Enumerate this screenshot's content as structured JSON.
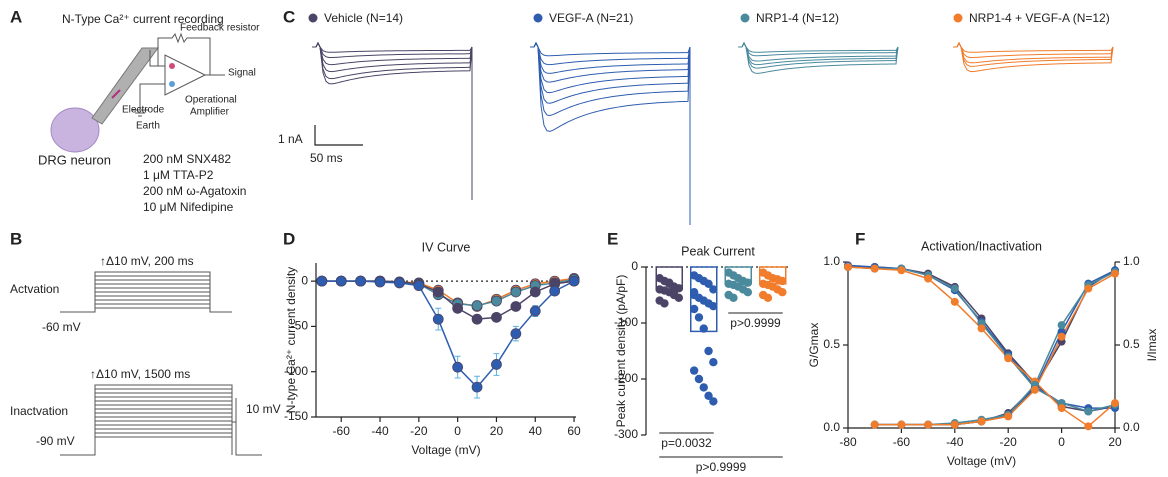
{
  "panel_labels": [
    "A",
    "B",
    "C",
    "D",
    "E",
    "F"
  ],
  "panel_a": {
    "title": "N-Type Ca²⁺ current recording",
    "feedback": "Feedback resistor",
    "signal": "Signal",
    "amplifier": [
      "Operational",
      "Amplifier"
    ],
    "electrode": "Electrode",
    "earth": "Earth",
    "cell": "DRG neuron",
    "blockers": [
      "200 nM SNX482",
      "1 μM TTA-P2",
      "200 nM ω-Agatoxin",
      "10 μM Nifedipine"
    ]
  },
  "panel_b": {
    "activation": {
      "step": "↑Δ10 mV, 200 ms",
      "label": "Actvation",
      "hold": "-60 mV"
    },
    "inactivation": {
      "step": "↑Δ10 mV, 1500 ms",
      "label": "Inactvation",
      "hold": "-90 mV",
      "test": "10 mV"
    }
  },
  "chart_data": [
    {
      "type": "traces",
      "scale_y": "1 nA",
      "scale_x": "50 ms",
      "series": [
        {
          "name": "Vehicle (N=14)",
          "color": "#4b4466",
          "values": [
            0.3,
            0.6,
            1.0,
            1.4,
            1.8,
            2.1
          ]
        },
        {
          "name": "VEGF-A (N=21)",
          "color": "#2e5db0",
          "values": [
            0.5,
            1.0,
            1.5,
            2.0,
            2.6,
            3.2,
            3.9,
            4.8
          ]
        },
        {
          "name": "NRP1-4 (N=12)",
          "color": "#4a8a9c",
          "values": [
            0.3,
            0.5,
            0.8,
            1.0,
            1.2,
            1.5
          ]
        },
        {
          "name": "NRP1-4  + VEGF-A (N=12)",
          "color": "#f07c2c",
          "values": [
            0.3,
            0.6,
            0.9,
            1.1,
            1.4
          ]
        }
      ]
    },
    {
      "type": "line",
      "title": "IV Curve",
      "xlabel": "Voltage (mV)",
      "ylabel": "N-type Ca²⁺ current density",
      "x": [
        -70,
        -60,
        -50,
        -40,
        -30,
        -20,
        -10,
        0,
        10,
        20,
        30,
        40,
        50,
        60
      ],
      "xlim": [
        -73,
        61
      ],
      "xticks": [
        -60,
        -40,
        -20,
        0,
        20,
        40,
        60
      ],
      "ylim": [
        -150,
        20
      ],
      "yticks": [
        0,
        -50,
        -100,
        -150
      ],
      "zero_line": true,
      "series": [
        {
          "color": "#f07c2c",
          "values": [
            0,
            0,
            0,
            0,
            -1,
            -2,
            -10,
            -24,
            -28,
            -20,
            -10,
            -3,
            0,
            3
          ]
        },
        {
          "color": "#4a8a9c",
          "values": [
            0,
            0,
            0,
            0,
            -1,
            -3,
            -15,
            -25,
            -27,
            -22,
            -12,
            -5,
            -2,
            2
          ]
        },
        {
          "color": "#4b4466",
          "values": [
            0,
            0,
            0,
            0,
            -1,
            -3,
            -12,
            -30,
            -42,
            -40,
            -28,
            -12,
            -3,
            0
          ]
        },
        {
          "color": "#2e5db0",
          "values": [
            0,
            0,
            0,
            -1,
            -2,
            -5,
            -42,
            -95,
            -117,
            -92,
            -58,
            -33,
            -11,
            0
          ],
          "errors": [
            0,
            0,
            0,
            0,
            1,
            3,
            12,
            12,
            12,
            12,
            8,
            6,
            4,
            3
          ]
        }
      ]
    },
    {
      "type": "dotbar",
      "title": "Peak Current",
      "ylabel": "Peak current density (pA/pF)",
      "ylim": [
        -300,
        0
      ],
      "yticks": [
        0,
        -100,
        -200,
        -300
      ],
      "zero_line": true,
      "categories": [
        null,
        null,
        null,
        null
      ],
      "colors": [
        "#4b4466",
        "#2e5db0",
        "#4a8a9c",
        "#f07c2c"
      ],
      "values": [
        -40,
        -115,
        -30,
        -30
      ],
      "points": [
        [
          -20,
          -25,
          -30,
          -35,
          -38,
          -40,
          -42,
          -45,
          -50,
          -55,
          -60,
          -65,
          -28,
          -48
        ],
        [
          -15,
          -20,
          -25,
          -30,
          -40,
          -45,
          -55,
          -60,
          -65,
          -70,
          -75,
          -90,
          -110,
          -150,
          -170,
          -185,
          -200,
          -215,
          -230,
          -240,
          -50
        ],
        [
          -10,
          -15,
          -20,
          -25,
          -28,
          -30,
          -32,
          -35,
          -40,
          -45,
          -50,
          -55
        ],
        [
          -10,
          -15,
          -20,
          -22,
          -25,
          -30,
          -32,
          -35,
          -40,
          -45,
          -50,
          -55
        ]
      ],
      "annotations": [
        "p>0.9999",
        "p=0.0032",
        "p>0.9999"
      ]
    },
    {
      "type": "line",
      "title": "Activation/Inactivation",
      "xlabel": "Voltage (mV)",
      "ylabel": "G/Gmax",
      "y2label": "I/Imax",
      "x": [
        -80,
        -70,
        -60,
        -50,
        -40,
        -30,
        -20,
        -10,
        0,
        10,
        20
      ],
      "xlim": [
        -80,
        20
      ],
      "xticks": [
        -80,
        -60,
        -40,
        -20,
        0,
        20
      ],
      "ylim": [
        0,
        1
      ],
      "yticks": [
        {
          "value": 0,
          "label": "0.0"
        },
        {
          "value": 0.5,
          "label": "0.5"
        },
        {
          "value": 1,
          "label": "1.0"
        }
      ],
      "y2lim": [
        0,
        1
      ],
      "y2ticks": [
        {
          "value": 0,
          "label": "0.0"
        },
        {
          "value": 0.5,
          "label": "0.5"
        },
        {
          "value": 1,
          "label": "1.0"
        }
      ],
      "series": [
        {
          "color": "#4b4466",
          "axis": "y2",
          "values": [
            0.97,
            0.97,
            0.96,
            0.93,
            0.85,
            0.66,
            0.45,
            0.27,
            0.13,
            0.1,
            0.13
          ]
        },
        {
          "color": "#2e5db0",
          "axis": "y2",
          "values": [
            0.98,
            0.97,
            0.96,
            0.92,
            0.83,
            0.64,
            0.44,
            0.25,
            0.15,
            0.12,
            0.12
          ]
        },
        {
          "color": "#4a8a9c",
          "axis": "y2",
          "values": [
            0.97,
            0.96,
            0.96,
            0.92,
            0.84,
            0.63,
            0.43,
            0.24,
            0.15,
            0.1,
            0.14
          ]
        },
        {
          "color": "#f07c2c",
          "axis": "y2",
          "values": [
            0.97,
            0.96,
            0.95,
            0.9,
            0.76,
            0.6,
            0.42,
            0.28,
            0.12,
            0.01,
            0.15
          ]
        },
        {
          "color": "#4b4466",
          "values": [
            null,
            0.02,
            0.02,
            0.02,
            0.02,
            0.04,
            0.09,
            0.25,
            0.52,
            0.85,
            0.95
          ]
        },
        {
          "color": "#2e5db0",
          "values": [
            null,
            0.02,
            0.02,
            0.02,
            0.02,
            0.04,
            0.08,
            0.24,
            0.58,
            0.87,
            0.95
          ]
        },
        {
          "color": "#4a8a9c",
          "values": [
            null,
            0.02,
            0.02,
            0.02,
            0.03,
            0.05,
            0.08,
            0.26,
            0.62,
            0.86,
            0.94
          ]
        },
        {
          "color": "#f07c2c",
          "values": [
            null,
            0.02,
            0.02,
            0.02,
            0.02,
            0.04,
            0.07,
            0.23,
            0.55,
            0.84,
            0.93
          ]
        }
      ]
    }
  ]
}
